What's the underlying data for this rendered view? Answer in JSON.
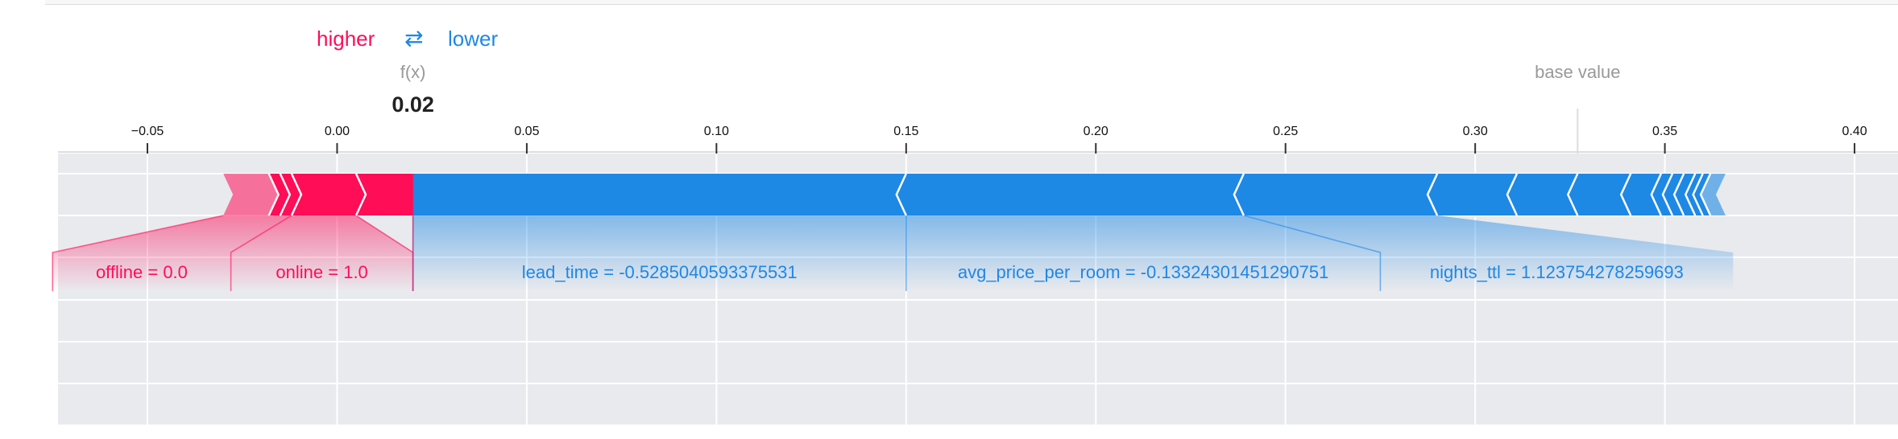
{
  "legend": {
    "higher": "higher",
    "arrow": "⇄",
    "lower": "lower"
  },
  "colors": {
    "positive": "#ff0d57",
    "negative": "#1e88e5",
    "background": "#e9eaee"
  },
  "chart_data": {
    "type": "force",
    "fx_label": "f(x)",
    "fx_value_text": "0.02",
    "fx_value": 0.02,
    "base_value_label": "base value",
    "base_value": 0.327,
    "xlim": [
      -0.075,
      0.405
    ],
    "ticks": [
      {
        "value": -0.05,
        "label": "−0.05"
      },
      {
        "value": 0.0,
        "label": "0.00"
      },
      {
        "value": 0.05,
        "label": "0.05"
      },
      {
        "value": 0.1,
        "label": "0.10"
      },
      {
        "value": 0.15,
        "label": "0.15"
      },
      {
        "value": 0.2,
        "label": "0.20"
      },
      {
        "value": 0.25,
        "label": "0.25"
      },
      {
        "value": 0.3,
        "label": "0.30"
      },
      {
        "value": 0.35,
        "label": "0.35"
      },
      {
        "value": 0.4,
        "label": "0.40"
      }
    ],
    "positive_segments": [
      {
        "start": -0.03,
        "end": -0.018
      },
      {
        "start": -0.018,
        "end": -0.015
      },
      {
        "start": -0.015,
        "end": -0.012
      },
      {
        "start": -0.012,
        "end": 0.005
      },
      {
        "start": 0.005,
        "end": 0.02
      }
    ],
    "negative_segments": [
      {
        "start": 0.02,
        "end": 0.15
      },
      {
        "start": 0.15,
        "end": 0.239
      },
      {
        "start": 0.239,
        "end": 0.29
      },
      {
        "start": 0.29,
        "end": 0.311
      },
      {
        "start": 0.311,
        "end": 0.327
      },
      {
        "start": 0.327,
        "end": 0.341
      },
      {
        "start": 0.341,
        "end": 0.349
      },
      {
        "start": 0.349,
        "end": 0.352
      },
      {
        "start": 0.352,
        "end": 0.355
      },
      {
        "start": 0.355,
        "end": 0.358
      },
      {
        "start": 0.358,
        "end": 0.36
      },
      {
        "start": 0.36,
        "end": 0.362
      },
      {
        "start": 0.362,
        "end": 0.366
      }
    ],
    "labels": [
      {
        "text": "offline = 0.0",
        "sign": "positive",
        "seg_start": -0.03,
        "seg_end": -0.012,
        "lab_start": -0.075,
        "lab_end": -0.028
      },
      {
        "text": "online = 1.0",
        "sign": "positive",
        "seg_start": -0.012,
        "seg_end": 0.005,
        "lab_start": -0.028,
        "lab_end": 0.02
      },
      {
        "text": "lead_time = -0.5285040593375531",
        "sign": "negative",
        "seg_start": 0.02,
        "seg_end": 0.15,
        "lab_start": 0.02,
        "lab_end": 0.15
      },
      {
        "text": "avg_price_per_room = -0.13324301451290751",
        "sign": "negative",
        "seg_start": 0.15,
        "seg_end": 0.239,
        "lab_start": 0.15,
        "lab_end": 0.275
      },
      {
        "text": "nights_ttl = 1.123754278259693",
        "sign": "negative",
        "seg_start": 0.239,
        "seg_end": 0.29,
        "lab_start": 0.275,
        "lab_end": 0.368
      }
    ]
  }
}
